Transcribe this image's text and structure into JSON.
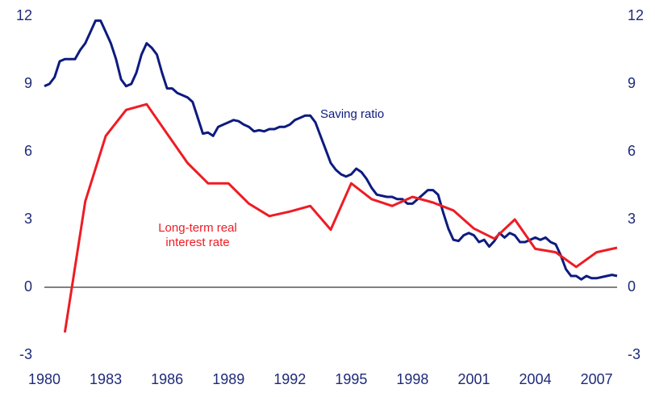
{
  "chart_data": {
    "type": "line",
    "xlim": [
      1980,
      2008
    ],
    "xticks": [
      1980,
      1983,
      1986,
      1989,
      1992,
      1995,
      1998,
      2001,
      2004,
      2007
    ],
    "ylim": [
      -3,
      12
    ],
    "yticks": [
      -3,
      0,
      3,
      6,
      9,
      12
    ],
    "y2lim": [
      -3,
      12
    ],
    "y2ticks": [
      -3,
      0,
      3,
      6,
      9,
      12
    ],
    "annotations": [
      {
        "text": "Saving ratio",
        "color": "#0d1b7f"
      },
      {
        "text": "Long-term real",
        "color": "#ee1c24"
      },
      {
        "text": "interest rate",
        "color": "#ee1c24"
      }
    ],
    "series": [
      {
        "name": "Saving ratio",
        "color": "#0d1b7f",
        "x": [
          1980.0,
          1980.25,
          1980.5,
          1980.75,
          1981.0,
          1981.25,
          1981.5,
          1981.75,
          1982.0,
          1982.25,
          1982.5,
          1982.75,
          1983.0,
          1983.25,
          1983.5,
          1983.75,
          1984.0,
          1984.25,
          1984.5,
          1984.75,
          1985.0,
          1985.25,
          1985.5,
          1985.75,
          1986.0,
          1986.25,
          1986.5,
          1986.75,
          1987.0,
          1987.25,
          1987.5,
          1987.75,
          1988.0,
          1988.25,
          1988.5,
          1988.75,
          1989.0,
          1989.25,
          1989.5,
          1989.75,
          1990.0,
          1990.25,
          1990.5,
          1990.75,
          1991.0,
          1991.25,
          1991.5,
          1991.75,
          1992.0,
          1992.25,
          1992.5,
          1992.75,
          1993.0,
          1993.25,
          1993.5,
          1993.75,
          1994.0,
          1994.25,
          1994.5,
          1994.75,
          1995.0,
          1995.25,
          1995.5,
          1995.75,
          1996.0,
          1996.25,
          1996.5,
          1996.75,
          1997.0,
          1997.25,
          1997.5,
          1997.75,
          1998.0,
          1998.25,
          1998.5,
          1998.75,
          1999.0,
          1999.25,
          1999.5,
          1999.75,
          2000.0,
          2000.25,
          2000.5,
          2000.75,
          2001.0,
          2001.25,
          2001.5,
          2001.75,
          2002.0,
          2002.25,
          2002.5,
          2002.75,
          2003.0,
          2003.25,
          2003.5,
          2003.75,
          2004.0,
          2004.25,
          2004.5,
          2004.75,
          2005.0,
          2005.25,
          2005.5,
          2005.75,
          2006.0,
          2006.25,
          2006.5,
          2006.75,
          2007.0,
          2007.25,
          2007.5,
          2007.75,
          2008.0
        ],
        "values": [
          8.9,
          9.0,
          9.3,
          10.0,
          10.1,
          10.1,
          10.1,
          10.5,
          10.8,
          11.3,
          11.8,
          11.8,
          11.3,
          10.8,
          10.1,
          9.2,
          8.9,
          9.0,
          9.5,
          10.3,
          10.8,
          10.6,
          10.3,
          9.5,
          8.8,
          8.8,
          8.6,
          8.5,
          8.4,
          8.2,
          7.5,
          6.8,
          6.85,
          6.7,
          7.1,
          7.2,
          7.3,
          7.4,
          7.35,
          7.2,
          7.1,
          6.9,
          6.95,
          6.9,
          7.0,
          7.0,
          7.1,
          7.1,
          7.2,
          7.4,
          7.5,
          7.6,
          7.6,
          7.3,
          6.7,
          6.1,
          5.5,
          5.2,
          5.0,
          4.9,
          5.0,
          5.25,
          5.1,
          4.8,
          4.4,
          4.1,
          4.05,
          4.0,
          4.0,
          3.9,
          3.9,
          3.7,
          3.7,
          3.9,
          4.1,
          4.3,
          4.3,
          4.1,
          3.3,
          2.6,
          2.1,
          2.05,
          2.3,
          2.4,
          2.3,
          2.0,
          2.1,
          1.8,
          2.05,
          2.4,
          2.2,
          2.4,
          2.3,
          2.0,
          2.0,
          2.1,
          2.2,
          2.1,
          2.2,
          2.0,
          1.9,
          1.4,
          0.8,
          0.5,
          0.5,
          0.35,
          0.5,
          0.4,
          0.4,
          0.45,
          0.5,
          0.55,
          0.5
        ]
      },
      {
        "name": "Long-term real interest rate",
        "color": "#ee1c24",
        "x": [
          1981,
          1982,
          1983,
          1984,
          1985,
          1986,
          1987,
          1988,
          1989,
          1990,
          1991,
          1992,
          1993,
          1994,
          1995,
          1996,
          1997,
          1998,
          1999,
          2000,
          2001,
          2002,
          2003,
          2004,
          2005,
          2006,
          2007,
          2008
        ],
        "values": [
          -2.0,
          3.8,
          6.7,
          7.85,
          8.1,
          6.8,
          5.5,
          4.6,
          4.6,
          3.7,
          3.15,
          3.35,
          3.6,
          2.55,
          4.6,
          3.9,
          3.6,
          4.0,
          3.75,
          3.4,
          2.6,
          2.15,
          3.0,
          1.7,
          1.55,
          0.9,
          1.55,
          1.75
        ]
      }
    ]
  }
}
